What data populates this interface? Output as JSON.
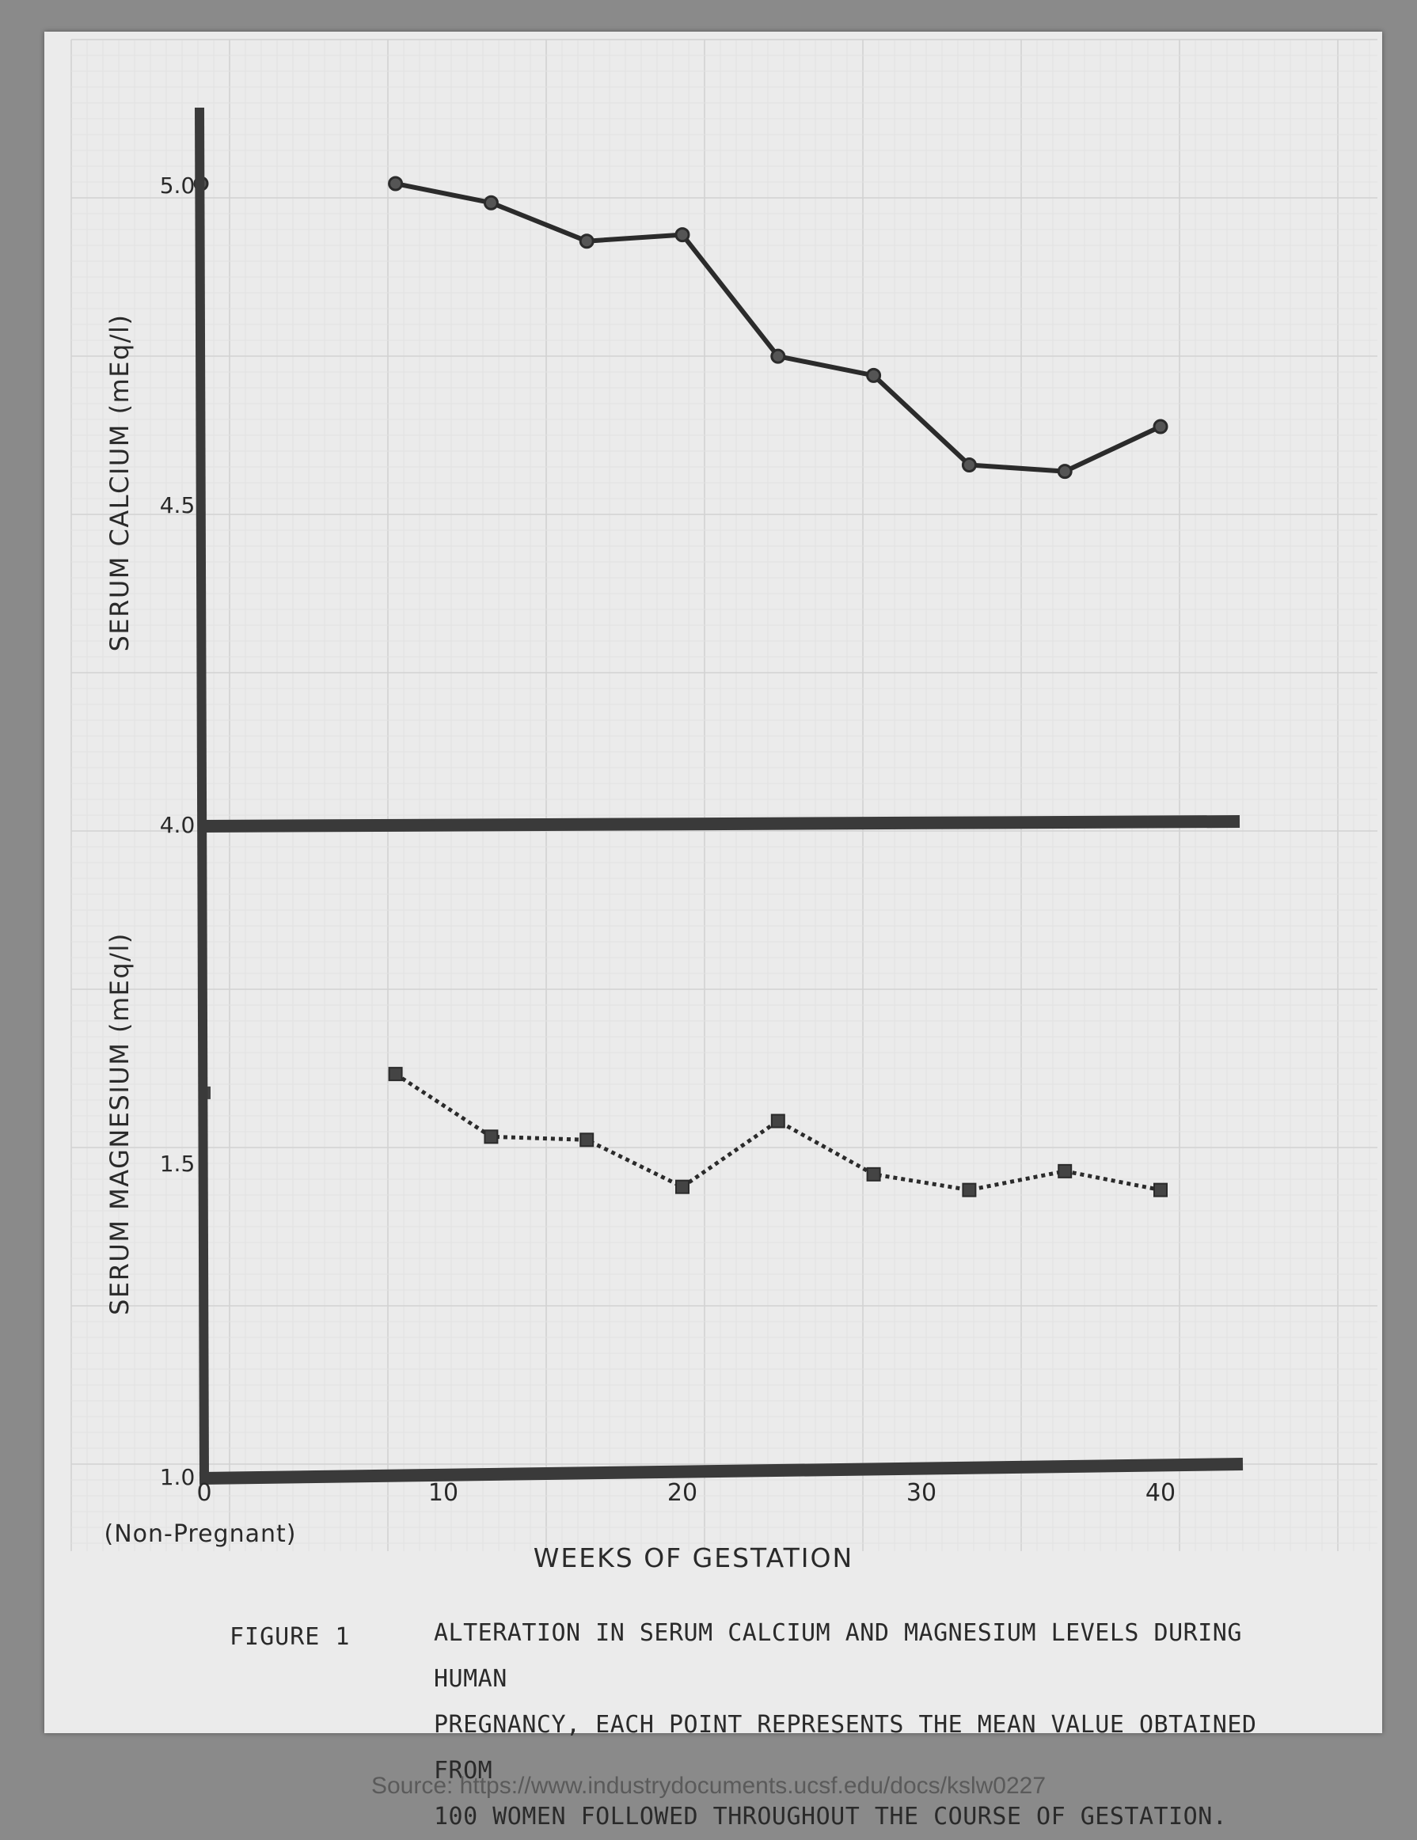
{
  "chart_data": {
    "type": "line",
    "xlabel": "WEEKS OF GESTATION",
    "x_ticks": [
      "0",
      "10",
      "20",
      "30",
      "40"
    ],
    "x_tick_sub": "(Non-Pregnant)",
    "xlim": [
      0,
      43
    ],
    "grid": true,
    "panels": [
      {
        "id": "calcium",
        "ylabel": "SERUM CALCIUM (mEq/l)",
        "ylim": [
          4.0,
          5.1
        ],
        "y_ticks": [
          {
            "value": 5.0,
            "label": "5.0"
          },
          {
            "value": 4.5,
            "label": "4.5"
          },
          {
            "value": 4.0,
            "label": "4.0"
          }
        ],
        "series": [
          {
            "marker": "circle",
            "line_style": "solid",
            "non_pregnant_value": 5.0,
            "x": [
              8,
              12,
              16,
              20,
              24,
              28,
              32,
              36,
              40
            ],
            "y": [
              5.0,
              4.97,
              4.91,
              4.92,
              4.73,
              4.7,
              4.56,
              4.55,
              4.62
            ]
          }
        ]
      },
      {
        "id": "magnesium",
        "ylabel": "SERUM MAGNESIUM (mEq/l)",
        "ylim": [
          1.0,
          2.0
        ],
        "y_ticks": [
          {
            "value": 1.5,
            "label": "1.5"
          },
          {
            "value": 1.0,
            "label": "1.0"
          }
        ],
        "series": [
          {
            "marker": "square",
            "line_style": "dotted",
            "non_pregnant_value": 1.61,
            "x": [
              8,
              12,
              16,
              20,
              24,
              28,
              32,
              36,
              40
            ],
            "y": [
              1.64,
              1.54,
              1.535,
              1.46,
              1.565,
              1.48,
              1.455,
              1.485,
              1.455
            ]
          }
        ]
      }
    ]
  },
  "caption": {
    "label": "FIGURE 1",
    "lines": [
      "ALTERATION IN SERUM CALCIUM AND MAGNESIUM LEVELS DURING HUMAN",
      "PREGNANCY, EACH POINT REPRESENTS THE MEAN VALUE OBTAINED FROM",
      "100 WOMEN FOLLOWED THROUGHOUT THE COURSE OF GESTATION."
    ]
  },
  "source": "Source: https://www.industrydocuments.ucsf.edu/docs/kslw0227"
}
